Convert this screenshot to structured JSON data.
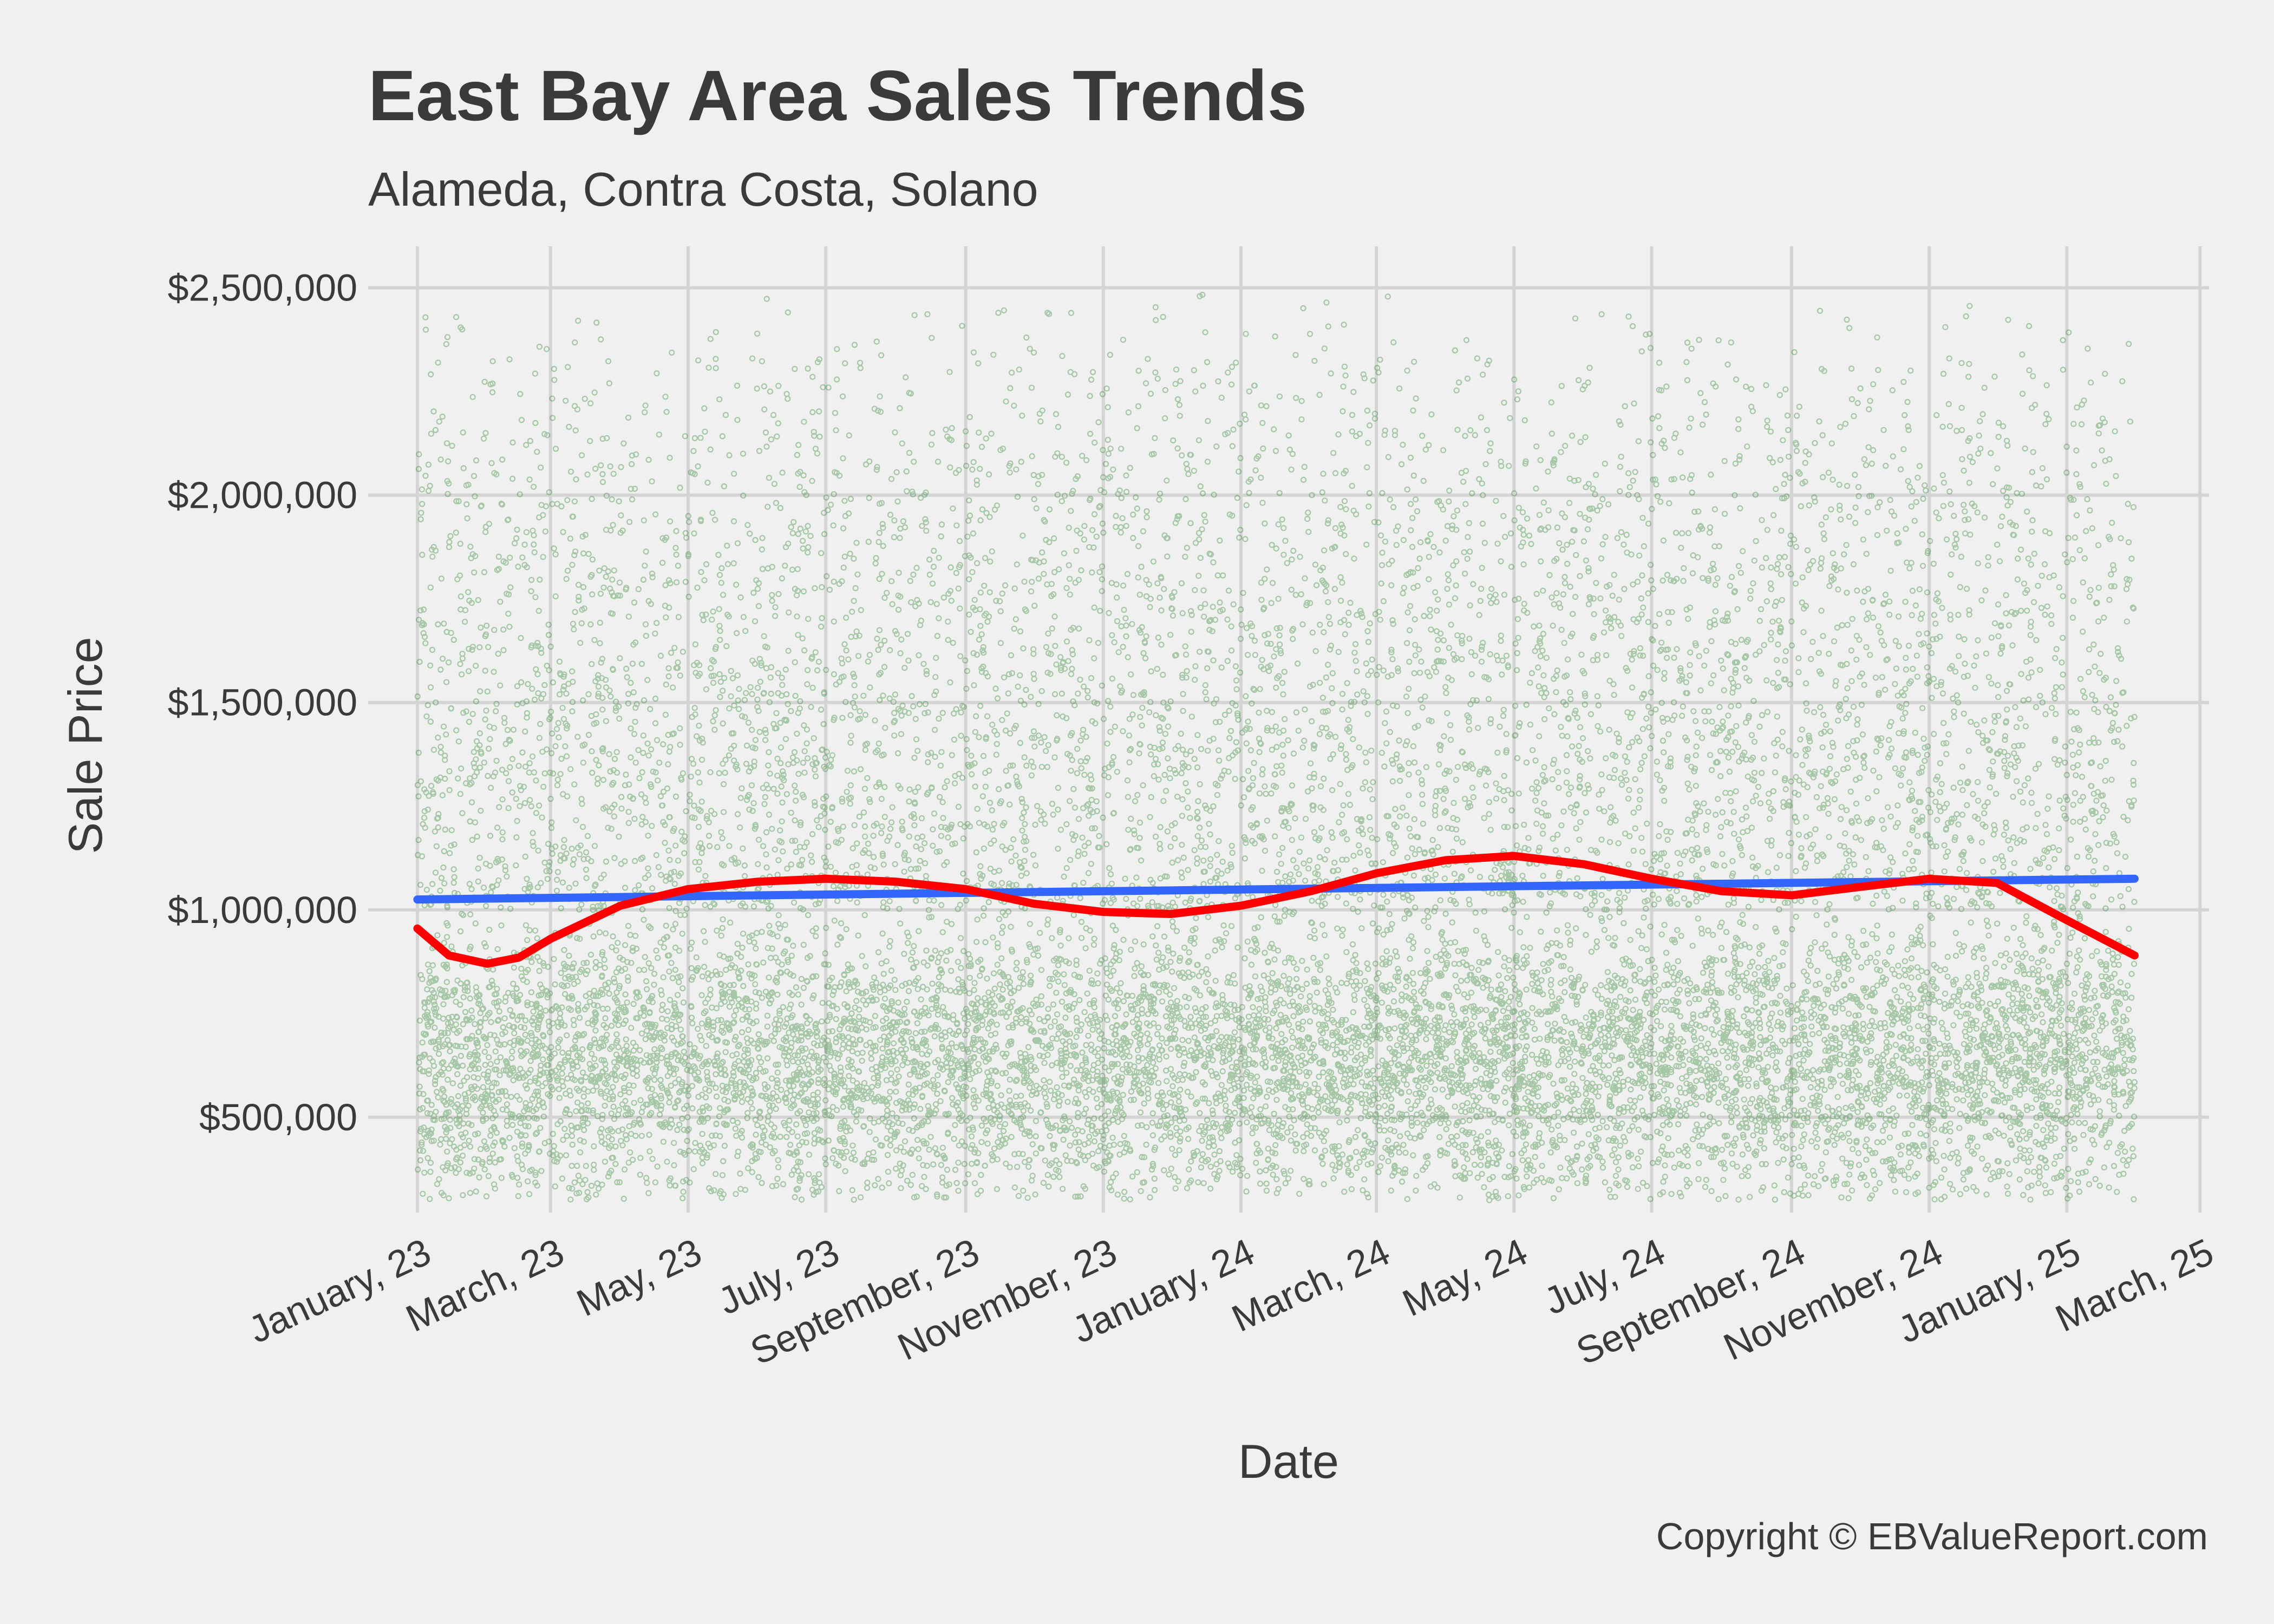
{
  "chart_data": {
    "type": "scatter",
    "title": "East Bay Area Sales Trends",
    "subtitle": "Alameda, Contra Costa, Solano",
    "xlabel": "Date",
    "ylabel": "Sale Price",
    "caption": "Copyright  © EBValueReport.com",
    "x_range": [
      "2022-12-15",
      "2025-03-05"
    ],
    "ylim": [
      270000,
      2600000
    ],
    "grid": true,
    "legend": "none",
    "x_ticks": [
      {
        "date": "2023-01-01",
        "label": "January, 23"
      },
      {
        "date": "2023-03-01",
        "label": "March, 23"
      },
      {
        "date": "2023-05-01",
        "label": "May, 23"
      },
      {
        "date": "2023-07-01",
        "label": "July, 23"
      },
      {
        "date": "2023-09-01",
        "label": "September, 23"
      },
      {
        "date": "2023-11-01",
        "label": "November, 23"
      },
      {
        "date": "2024-01-01",
        "label": "January, 24"
      },
      {
        "date": "2024-03-01",
        "label": "March, 24"
      },
      {
        "date": "2024-05-01",
        "label": "May, 24"
      },
      {
        "date": "2024-07-01",
        "label": "July, 24"
      },
      {
        "date": "2024-09-01",
        "label": "September, 24"
      },
      {
        "date": "2024-11-01",
        "label": "November, 24"
      },
      {
        "date": "2025-01-01",
        "label": "January, 25"
      },
      {
        "date": "2025-03-01",
        "label": "March, 25"
      }
    ],
    "y_ticks": [
      {
        "value": 500000,
        "label": "$500,000"
      },
      {
        "value": 1000000,
        "label": "$1,000,000"
      },
      {
        "value": 1500000,
        "label": "$1,500,000"
      },
      {
        "value": 2000000,
        "label": "$2,000,000"
      },
      {
        "value": 2500000,
        "label": "$2,500,000"
      }
    ],
    "colors": {
      "points": "#1a7a1a",
      "linear_trend": "#3366ff",
      "smooth_trend": "#ff0000",
      "background": "#f0f0f0",
      "grid": "#d4d4d4"
    },
    "points_summary": {
      "date_range": [
        "2023-01-01",
        "2025-01-31"
      ],
      "price_range": [
        300000,
        2500000
      ],
      "dense_band": [
        350000,
        1000000
      ]
    },
    "series": [
      {
        "kind": "linear",
        "x": [
          "2023-01-01",
          "2025-01-31"
        ],
        "y": [
          1025000,
          1075000
        ]
      },
      {
        "kind": "smooth",
        "x": [
          "2023-01-01",
          "2023-01-15",
          "2023-02-01",
          "2023-02-15",
          "2023-03-01",
          "2023-04-01",
          "2023-05-01",
          "2023-06-01",
          "2023-07-01",
          "2023-08-01",
          "2023-09-01",
          "2023-10-01",
          "2023-11-01",
          "2023-12-01",
          "2024-01-01",
          "2024-02-01",
          "2024-03-01",
          "2024-04-01",
          "2024-05-01",
          "2024-06-01",
          "2024-07-01",
          "2024-08-01",
          "2024-09-01",
          "2024-10-01",
          "2024-11-01",
          "2024-12-01",
          "2025-01-01",
          "2025-01-31"
        ],
        "y": [
          955000,
          890000,
          870000,
          885000,
          930000,
          1010000,
          1050000,
          1068000,
          1075000,
          1068000,
          1050000,
          1015000,
          995000,
          990000,
          1010000,
          1045000,
          1088000,
          1120000,
          1130000,
          1110000,
          1075000,
          1045000,
          1035000,
          1055000,
          1075000,
          1065000,
          975000,
          890000
        ]
      }
    ]
  }
}
